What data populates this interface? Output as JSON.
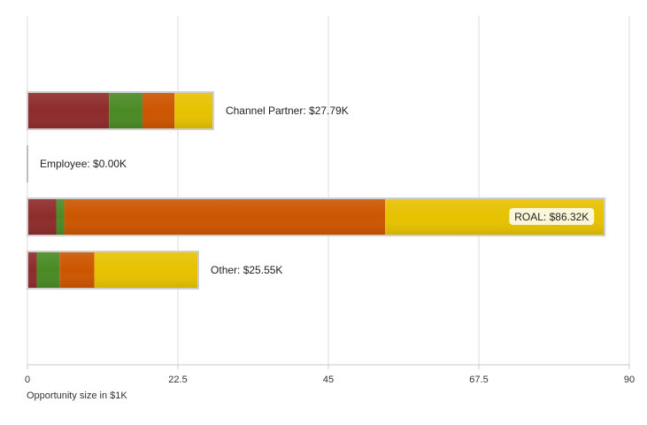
{
  "chart_data": {
    "type": "bar",
    "orientation": "horizontal",
    "stacked": true,
    "title": "",
    "xlabel": "Opportunity size in $1K",
    "ylabel": "",
    "xlim": [
      0,
      90
    ],
    "x_ticks": [
      "0",
      "22.5",
      "45",
      "67.5",
      "90"
    ],
    "grid": true,
    "categories": [
      "Channel Partner",
      "Employee",
      "ROAL",
      "Other"
    ],
    "bar_labels": [
      "Channel Partner: $27.79K",
      "Employee: $0.00K",
      "ROAL: $86.32K",
      "Other: $25.55K"
    ],
    "totals": [
      27.79,
      0.0,
      86.32,
      25.55
    ],
    "series": [
      {
        "color": "#8e2b2b",
        "values": [
          12.2,
          0.0,
          4.3,
          1.4
        ]
      },
      {
        "color": "#4a8a25",
        "values": [
          5.0,
          0.0,
          1.2,
          3.4
        ]
      },
      {
        "color": "#cc5500",
        "values": [
          4.8,
          0.0,
          48.0,
          5.2
        ]
      },
      {
        "color": "#e6c200",
        "values": [
          5.79,
          0.0,
          32.82,
          15.55
        ]
      }
    ]
  }
}
